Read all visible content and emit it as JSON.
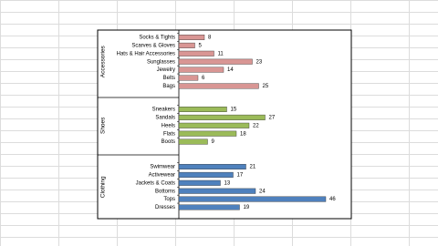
{
  "chart_data": {
    "type": "bar",
    "orientation": "horizontal",
    "groups": [
      {
        "name": "Accessories",
        "color": "#d99694",
        "categories": [
          "Socks & Tights",
          "Scarves & Gloves",
          "Hats & Hair Accessories",
          "Sunglasses",
          "Jewelry",
          "Belts",
          "Bags"
        ],
        "values": [
          8,
          5,
          11,
          23,
          14,
          6,
          25
        ]
      },
      {
        "name": "Shoes",
        "color": "#9bbb59",
        "categories": [
          "Sneakers",
          "Sandals",
          "Heels",
          "Flats",
          "Boots"
        ],
        "values": [
          15,
          27,
          22,
          18,
          9
        ]
      },
      {
        "name": "Clothing",
        "color": "#4f81bd",
        "categories": [
          "Swimwear",
          "Activewear",
          "Jackets & Coats",
          "Bottoms",
          "Tops",
          "Dresses"
        ],
        "values": [
          21,
          17,
          13,
          24,
          46,
          19
        ]
      }
    ]
  }
}
